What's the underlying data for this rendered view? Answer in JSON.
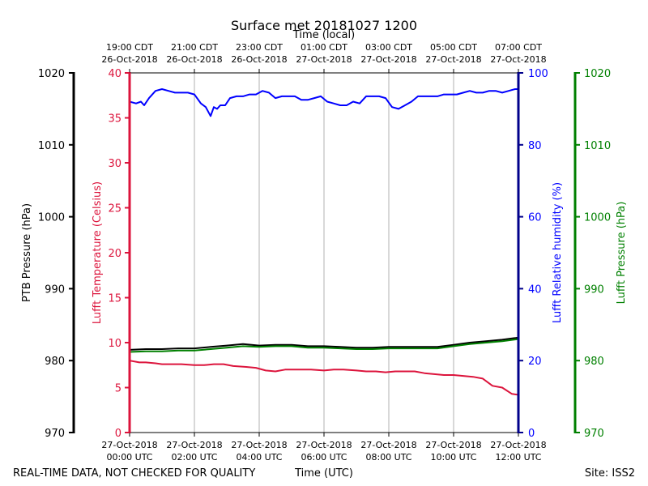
{
  "chart_data": {
    "type": "line",
    "title": "Surface met 20181027 1200",
    "xlabel_top": "Time (local)",
    "xlabel_bottom": "Time (UTC)",
    "footer_left": "REAL-TIME DATA, NOT CHECKED FOR QUALITY",
    "footer_right": "Site: ISS2",
    "x_unit": "hours UTC since 27-Oct-2018 00:00",
    "xlim": [
      0,
      12
    ],
    "grid": "vertical",
    "top_ticks": [
      {
        "x": 0,
        "line1": "19:00 CDT",
        "line2": "26-Oct-2018"
      },
      {
        "x": 2,
        "line1": "21:00 CDT",
        "line2": "26-Oct-2018"
      },
      {
        "x": 4,
        "line1": "23:00 CDT",
        "line2": "26-Oct-2018"
      },
      {
        "x": 6,
        "line1": "01:00 CDT",
        "line2": "27-Oct-2018"
      },
      {
        "x": 8,
        "line1": "03:00 CDT",
        "line2": "27-Oct-2018"
      },
      {
        "x": 10,
        "line1": "05:00 CDT",
        "line2": "27-Oct-2018"
      },
      {
        "x": 12,
        "line1": "07:00 CDT",
        "line2": "27-Oct-2018"
      }
    ],
    "bottom_ticks": [
      {
        "x": 0,
        "line1": "27-Oct-2018",
        "line2": "00:00 UTC"
      },
      {
        "x": 2,
        "line1": "27-Oct-2018",
        "line2": "02:00 UTC"
      },
      {
        "x": 4,
        "line1": "27-Oct-2018",
        "line2": "04:00 UTC"
      },
      {
        "x": 6,
        "line1": "27-Oct-2018",
        "line2": "06:00 UTC"
      },
      {
        "x": 8,
        "line1": "27-Oct-2018",
        "line2": "08:00 UTC"
      },
      {
        "x": 10,
        "line1": "27-Oct-2018",
        "line2": "10:00 UTC"
      },
      {
        "x": 12,
        "line1": "27-Oct-2018",
        "line2": "12:00 UTC"
      }
    ],
    "axes": {
      "ptb_pressure": {
        "label": "PTB Pressure (hPa)",
        "ylim": [
          970,
          1020
        ],
        "ticks": [
          970,
          980,
          990,
          1000,
          1010,
          1020
        ],
        "color": "#000000"
      },
      "temperature": {
        "label": "Lufft Temperature (Celsius)",
        "ylim": [
          0,
          40
        ],
        "ticks": [
          0,
          5,
          10,
          15,
          20,
          25,
          30,
          35,
          40
        ],
        "color": "#dc143c"
      },
      "humidity": {
        "label": "Lufft Relative humidity (%)",
        "ylim": [
          0,
          100
        ],
        "ticks": [
          0,
          20,
          40,
          60,
          80,
          100
        ],
        "color": "#0000ff"
      },
      "lufft_pressure": {
        "label": "Lufft Pressure (hPa)",
        "ylim": [
          970,
          1020
        ],
        "ticks": [
          970,
          980,
          990,
          1000,
          1010,
          1020
        ],
        "color": "#008000"
      }
    },
    "series": [
      {
        "axis": "humidity",
        "color": "#0000ff",
        "x": [
          0,
          0.2,
          0.35,
          0.45,
          0.6,
          0.8,
          1.0,
          1.2,
          1.4,
          1.6,
          1.8,
          2.0,
          2.2,
          2.35,
          2.5,
          2.6,
          2.7,
          2.8,
          2.95,
          3.1,
          3.3,
          3.5,
          3.7,
          3.9,
          4.1,
          4.3,
          4.5,
          4.7,
          4.9,
          5.1,
          5.3,
          5.5,
          5.7,
          5.9,
          6.1,
          6.3,
          6.5,
          6.7,
          6.9,
          7.1,
          7.3,
          7.5,
          7.7,
          7.9,
          8.1,
          8.3,
          8.5,
          8.7,
          8.9,
          9.1,
          9.3,
          9.5,
          9.7,
          9.9,
          10.1,
          10.3,
          10.5,
          10.7,
          10.9,
          11.1,
          11.3,
          11.5,
          11.7,
          11.9,
          12.0
        ],
        "y": [
          92,
          91.5,
          92,
          91,
          93,
          95,
          95.5,
          95,
          94.5,
          94.5,
          94.5,
          94,
          91.5,
          90.5,
          88,
          90.5,
          90,
          91,
          91,
          93,
          93.5,
          93.5,
          94,
          94,
          95,
          94.5,
          93,
          93.5,
          93.5,
          93.5,
          92.5,
          92.5,
          93,
          93.5,
          92,
          91.5,
          91,
          91,
          92,
          91.5,
          93.5,
          93.5,
          93.5,
          93,
          90.5,
          90,
          91,
          92,
          93.5,
          93.5,
          93.5,
          93.5,
          94,
          94,
          94,
          94.5,
          95,
          94.5,
          94.5,
          95,
          95,
          94.5,
          95,
          95.5,
          95.5
        ]
      },
      {
        "axis": "temperature",
        "color": "#dc143c",
        "x": [
          0,
          0.3,
          0.5,
          0.8,
          1.0,
          1.3,
          1.6,
          2.0,
          2.3,
          2.6,
          2.9,
          3.2,
          3.6,
          3.9,
          4.2,
          4.5,
          4.8,
          5.2,
          5.6,
          6.0,
          6.3,
          6.6,
          7.0,
          7.3,
          7.6,
          7.9,
          8.2,
          8.5,
          8.8,
          9.1,
          9.4,
          9.7,
          10.0,
          10.3,
          10.6,
          10.9,
          11.2,
          11.5,
          11.8,
          12.0
        ],
        "y": [
          8.0,
          7.8,
          7.8,
          7.7,
          7.6,
          7.6,
          7.6,
          7.5,
          7.5,
          7.6,
          7.6,
          7.4,
          7.3,
          7.2,
          6.9,
          6.8,
          7.0,
          7.0,
          7.0,
          6.9,
          7.0,
          7.0,
          6.9,
          6.8,
          6.8,
          6.7,
          6.8,
          6.8,
          6.8,
          6.6,
          6.5,
          6.4,
          6.4,
          6.3,
          6.2,
          6.0,
          5.2,
          5.0,
          4.3,
          4.2
        ]
      },
      {
        "axis": "ptb_pressure",
        "color": "#000000",
        "x": [
          0,
          0.5,
          1.0,
          1.5,
          2.0,
          2.5,
          3.0,
          3.5,
          4.0,
          4.5,
          5.0,
          5.5,
          6.0,
          6.5,
          7.0,
          7.5,
          8.0,
          8.5,
          9.0,
          9.5,
          10.0,
          10.5,
          11.0,
          11.5,
          12.0
        ],
        "y": [
          981.5,
          981.6,
          981.6,
          981.7,
          981.7,
          981.9,
          982.1,
          982.3,
          982.1,
          982.2,
          982.2,
          982.0,
          982.0,
          981.9,
          981.8,
          981.8,
          981.9,
          981.9,
          981.9,
          981.9,
          982.2,
          982.5,
          982.7,
          982.9,
          983.2
        ]
      },
      {
        "axis": "lufft_pressure",
        "color": "#008000",
        "x": [
          0,
          0.5,
          1.0,
          1.5,
          2.0,
          2.5,
          3.0,
          3.5,
          4.0,
          4.5,
          5.0,
          5.5,
          6.0,
          6.5,
          7.0,
          7.5,
          8.0,
          8.5,
          9.0,
          9.5,
          10.0,
          10.5,
          11.0,
          11.5,
          12.0
        ],
        "y": [
          981.2,
          981.3,
          981.3,
          981.4,
          981.4,
          981.6,
          981.8,
          982.0,
          981.9,
          982.0,
          982.0,
          981.8,
          981.8,
          981.7,
          981.6,
          981.6,
          981.7,
          981.7,
          981.7,
          981.7,
          982.0,
          982.3,
          982.5,
          982.7,
          983.0
        ]
      }
    ]
  }
}
